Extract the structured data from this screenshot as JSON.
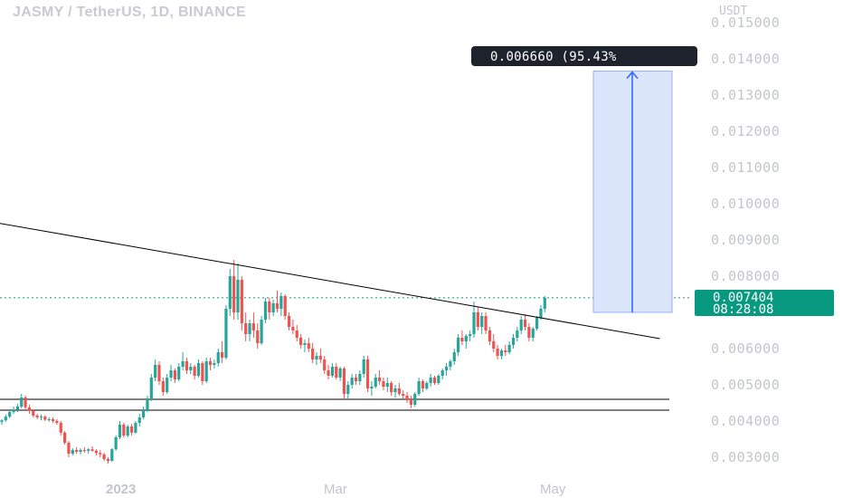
{
  "chart": {
    "symbol_title": "JASMY / TetherUS, 1D, BINANCE",
    "currency": "USDT",
    "price_ticks": [
      "0.015000",
      "0.014000",
      "0.013000",
      "0.012000",
      "0.011000",
      "0.010000",
      "0.009000",
      "0.008000",
      "0.006000",
      "0.005000",
      "0.004000",
      "0.003000"
    ],
    "time_ticks": {
      "year": "2023",
      "mar": "Mar",
      "may": "May"
    },
    "last_price": "0.007404",
    "countdown": "08:28:08",
    "measure_label": "0.006660 (95.43%",
    "colors": {
      "up": "#26a69a",
      "down": "#ef5350",
      "last_price_bg": "#089981",
      "measure_fill": "#dbe6fb",
      "measure_arrow": "#2962ff",
      "measure_label_bg": "#1e222d",
      "trendline": "#000000"
    }
  },
  "chart_data": {
    "type": "candlestick",
    "title": "JASMY / TetherUS, 1D, BINANCE",
    "ylabel": "USDT",
    "ylim": [
      0.0025,
      0.0155
    ],
    "x_labels": [
      "2023",
      "Mar",
      "May"
    ],
    "candles": [
      [
        0.00398,
        0.00405,
        0.0039,
        0.00402
      ],
      [
        0.00402,
        0.00418,
        0.00398,
        0.00412
      ],
      [
        0.00412,
        0.0043,
        0.00408,
        0.00425
      ],
      [
        0.00425,
        0.0044,
        0.0042,
        0.00432
      ],
      [
        0.00432,
        0.00448,
        0.00425,
        0.0044
      ],
      [
        0.0044,
        0.00475,
        0.00435,
        0.00465
      ],
      [
        0.00465,
        0.0047,
        0.0043,
        0.00438
      ],
      [
        0.00438,
        0.00445,
        0.0042,
        0.00428
      ],
      [
        0.00428,
        0.00432,
        0.0041,
        0.00415
      ],
      [
        0.00415,
        0.0042,
        0.00405,
        0.0041
      ],
      [
        0.0041,
        0.00418,
        0.00402,
        0.00412
      ],
      [
        0.00412,
        0.00416,
        0.004,
        0.00404
      ],
      [
        0.00404,
        0.0041,
        0.00398,
        0.00405
      ],
      [
        0.00405,
        0.0041,
        0.00395,
        0.004
      ],
      [
        0.004,
        0.00405,
        0.0039,
        0.00395
      ],
      [
        0.00395,
        0.004,
        0.0036,
        0.00368
      ],
      [
        0.00368,
        0.00372,
        0.00335,
        0.0034
      ],
      [
        0.0034,
        0.00345,
        0.003,
        0.0031
      ],
      [
        0.0031,
        0.00325,
        0.00305,
        0.0032
      ],
      [
        0.0032,
        0.00328,
        0.0031,
        0.00315
      ],
      [
        0.00315,
        0.00325,
        0.00308,
        0.0032
      ],
      [
        0.0032,
        0.00328,
        0.00312,
        0.00318
      ],
      [
        0.00318,
        0.00325,
        0.0031,
        0.00322
      ],
      [
        0.00322,
        0.0033,
        0.00315,
        0.00318
      ],
      [
        0.00318,
        0.00322,
        0.00305,
        0.00312
      ],
      [
        0.00312,
        0.0032,
        0.003,
        0.00308
      ],
      [
        0.00308,
        0.00312,
        0.0029,
        0.00295
      ],
      [
        0.00295,
        0.003,
        0.00282,
        0.0029
      ],
      [
        0.0029,
        0.00325,
        0.00288,
        0.00322
      ],
      [
        0.00322,
        0.0036,
        0.00318,
        0.00355
      ],
      [
        0.00355,
        0.004,
        0.0035,
        0.0039
      ],
      [
        0.0039,
        0.00395,
        0.00355,
        0.0036
      ],
      [
        0.0036,
        0.0039,
        0.00355,
        0.00385
      ],
      [
        0.00385,
        0.00392,
        0.0036,
        0.00368
      ],
      [
        0.00368,
        0.004,
        0.00365,
        0.00395
      ],
      [
        0.00395,
        0.0042,
        0.00385,
        0.0041
      ],
      [
        0.0041,
        0.0044,
        0.00405,
        0.0043
      ],
      [
        0.0043,
        0.0047,
        0.00425,
        0.0046
      ],
      [
        0.0046,
        0.0053,
        0.00455,
        0.0052
      ],
      [
        0.0052,
        0.0057,
        0.0051,
        0.00555
      ],
      [
        0.00555,
        0.00565,
        0.005,
        0.0051
      ],
      [
        0.0051,
        0.0052,
        0.0047,
        0.0048
      ],
      [
        0.0048,
        0.0053,
        0.00475,
        0.0052
      ],
      [
        0.0052,
        0.00555,
        0.0051,
        0.0054
      ],
      [
        0.0054,
        0.00545,
        0.00505,
        0.00515
      ],
      [
        0.00515,
        0.0056,
        0.0051,
        0.0055
      ],
      [
        0.0055,
        0.0059,
        0.0054,
        0.00565
      ],
      [
        0.00565,
        0.00575,
        0.0053,
        0.0054
      ],
      [
        0.0054,
        0.0056,
        0.0053,
        0.0055
      ],
      [
        0.0055,
        0.00555,
        0.00515,
        0.00525
      ],
      [
        0.00525,
        0.0057,
        0.0052,
        0.0056
      ],
      [
        0.0056,
        0.00565,
        0.005,
        0.0051
      ],
      [
        0.0051,
        0.00575,
        0.00505,
        0.00565
      ],
      [
        0.00565,
        0.00575,
        0.0054,
        0.00555
      ],
      [
        0.00555,
        0.0057,
        0.00545,
        0.0056
      ],
      [
        0.0056,
        0.006,
        0.0055,
        0.0059
      ],
      [
        0.0059,
        0.0062,
        0.0056,
        0.00575
      ],
      [
        0.00575,
        0.0072,
        0.0057,
        0.0071
      ],
      [
        0.0071,
        0.0082,
        0.0069,
        0.008
      ],
      [
        0.008,
        0.00845,
        0.0068,
        0.007
      ],
      [
        0.007,
        0.00835,
        0.0068,
        0.0079
      ],
      [
        0.0079,
        0.008,
        0.0065,
        0.0067
      ],
      [
        0.0067,
        0.007,
        0.0062,
        0.0064
      ],
      [
        0.0064,
        0.0068,
        0.0062,
        0.0067
      ],
      [
        0.0067,
        0.007,
        0.0063,
        0.0065
      ],
      [
        0.0065,
        0.0067,
        0.006,
        0.00615
      ],
      [
        0.00615,
        0.0069,
        0.0061,
        0.0068
      ],
      [
        0.0068,
        0.0074,
        0.0067,
        0.0073
      ],
      [
        0.0073,
        0.0074,
        0.0068,
        0.007
      ],
      [
        0.007,
        0.00735,
        0.0069,
        0.00725
      ],
      [
        0.00725,
        0.0076,
        0.007,
        0.0071
      ],
      [
        0.0071,
        0.00755,
        0.0069,
        0.00745
      ],
      [
        0.00745,
        0.0075,
        0.0068,
        0.0069
      ],
      [
        0.0069,
        0.007,
        0.0065,
        0.0066
      ],
      [
        0.0066,
        0.0068,
        0.0064,
        0.0065
      ],
      [
        0.0065,
        0.00665,
        0.0062,
        0.0063
      ],
      [
        0.0063,
        0.0064,
        0.006,
        0.0061
      ],
      [
        0.0061,
        0.00625,
        0.0059,
        0.00615
      ],
      [
        0.00615,
        0.0063,
        0.0059,
        0.006
      ],
      [
        0.006,
        0.00615,
        0.0056,
        0.0057
      ],
      [
        0.0057,
        0.0059,
        0.00555,
        0.0058
      ],
      [
        0.0058,
        0.006,
        0.0056,
        0.0057
      ],
      [
        0.0057,
        0.0058,
        0.0053,
        0.0054
      ],
      [
        0.0054,
        0.00555,
        0.00515,
        0.00525
      ],
      [
        0.00525,
        0.0056,
        0.0052,
        0.0055
      ],
      [
        0.0055,
        0.0056,
        0.00515,
        0.0052
      ],
      [
        0.0052,
        0.0055,
        0.0051,
        0.00545
      ],
      [
        0.00545,
        0.0055,
        0.0046,
        0.00475
      ],
      [
        0.00475,
        0.0051,
        0.0046,
        0.005
      ],
      [
        0.005,
        0.0053,
        0.0049,
        0.0052
      ],
      [
        0.0052,
        0.0053,
        0.005,
        0.0051
      ],
      [
        0.0051,
        0.0054,
        0.005,
        0.0053
      ],
      [
        0.0053,
        0.0058,
        0.0052,
        0.0057
      ],
      [
        0.0057,
        0.0058,
        0.0048,
        0.0049
      ],
      [
        0.0049,
        0.0051,
        0.0047,
        0.00495
      ],
      [
        0.00495,
        0.0053,
        0.0049,
        0.0052
      ],
      [
        0.0052,
        0.0054,
        0.005,
        0.0051
      ],
      [
        0.0051,
        0.0052,
        0.00485,
        0.00495
      ],
      [
        0.00495,
        0.0052,
        0.0048,
        0.00505
      ],
      [
        0.00505,
        0.0051,
        0.0047,
        0.0048
      ],
      [
        0.0048,
        0.005,
        0.00465,
        0.0049
      ],
      [
        0.0049,
        0.00505,
        0.0047,
        0.00475
      ],
      [
        0.00475,
        0.00485,
        0.0046,
        0.0047
      ],
      [
        0.0047,
        0.0048,
        0.0045,
        0.0046
      ],
      [
        0.0046,
        0.0047,
        0.00435,
        0.00445
      ],
      [
        0.00445,
        0.0048,
        0.0044,
        0.00475
      ],
      [
        0.00475,
        0.0052,
        0.0047,
        0.0051
      ],
      [
        0.0051,
        0.00515,
        0.0048,
        0.0049
      ],
      [
        0.0049,
        0.0051,
        0.00485,
        0.00505
      ],
      [
        0.00505,
        0.0053,
        0.00495,
        0.0052
      ],
      [
        0.0052,
        0.00525,
        0.005,
        0.00505
      ],
      [
        0.00505,
        0.0053,
        0.005,
        0.00525
      ],
      [
        0.00525,
        0.00545,
        0.00515,
        0.0054
      ],
      [
        0.0054,
        0.0056,
        0.00525,
        0.0055
      ],
      [
        0.0055,
        0.0057,
        0.0054,
        0.00565
      ],
      [
        0.00565,
        0.006,
        0.00555,
        0.0059
      ],
      [
        0.0059,
        0.0064,
        0.0058,
        0.0063
      ],
      [
        0.0063,
        0.0065,
        0.0061,
        0.0062
      ],
      [
        0.0062,
        0.0064,
        0.006,
        0.00635
      ],
      [
        0.00635,
        0.0065,
        0.0062,
        0.0064
      ],
      [
        0.0064,
        0.0073,
        0.0063,
        0.007
      ],
      [
        0.007,
        0.00715,
        0.0065,
        0.0066
      ],
      [
        0.0066,
        0.007,
        0.0064,
        0.0069
      ],
      [
        0.0069,
        0.007,
        0.0064,
        0.0065
      ],
      [
        0.0065,
        0.0066,
        0.0061,
        0.0062
      ],
      [
        0.0062,
        0.0064,
        0.0059,
        0.006
      ],
      [
        0.006,
        0.0061,
        0.0057,
        0.0058
      ],
      [
        0.0058,
        0.006,
        0.0057,
        0.00595
      ],
      [
        0.00595,
        0.0061,
        0.0058,
        0.0059
      ],
      [
        0.0059,
        0.0062,
        0.00585,
        0.0061
      ],
      [
        0.0061,
        0.0064,
        0.006,
        0.0063
      ],
      [
        0.0063,
        0.0066,
        0.0062,
        0.0065
      ],
      [
        0.0065,
        0.0069,
        0.0064,
        0.0068
      ],
      [
        0.0068,
        0.00695,
        0.0065,
        0.0066
      ],
      [
        0.0066,
        0.0067,
        0.0062,
        0.0063
      ],
      [
        0.0063,
        0.0066,
        0.0062,
        0.00655
      ],
      [
        0.00655,
        0.0069,
        0.0065,
        0.00685
      ],
      [
        0.00685,
        0.0072,
        0.0068,
        0.0071
      ],
      [
        0.0071,
        0.00745,
        0.007,
        0.0074
      ]
    ],
    "annotations": {
      "trendline": {
        "from": {
          "index": -8,
          "price": 0.0096
        },
        "to": {
          "index": 150,
          "price": 0.00635
        }
      },
      "support_lines": [
        0.0046,
        0.0043
      ],
      "last_price_line": 0.007404,
      "measure": {
        "from_price": 0.007,
        "to_price": 0.01366,
        "change": 0.00666,
        "percent": 95.43
      }
    }
  }
}
